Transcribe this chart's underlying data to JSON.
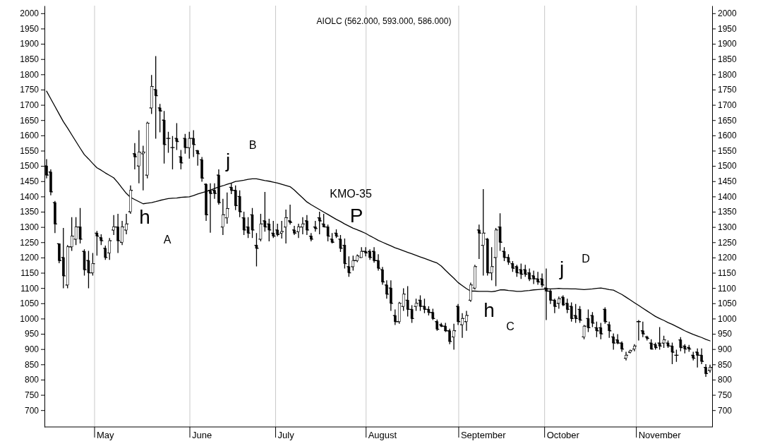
{
  "chart_data": {
    "type": "candlestick",
    "title": "AIOLC (562.000, 593.000, 586.000)",
    "color": "#000000",
    "categories": [
      null,
      null,
      null,
      null,
      null,
      null,
      null,
      null,
      null,
      null,
      null,
      null,
      null,
      null,
      "May",
      null,
      null,
      null,
      null,
      null,
      null,
      null,
      null,
      null,
      null,
      null,
      null,
      null,
      null,
      null,
      null,
      null,
      null,
      null,
      null,
      null,
      null,
      "June",
      null,
      null,
      null,
      null,
      null,
      null,
      null,
      null,
      null,
      null,
      null,
      null,
      null,
      null,
      null,
      null,
      null,
      null,
      null,
      "July",
      null,
      null,
      null,
      null,
      null,
      null,
      null,
      null,
      null,
      null,
      null,
      null,
      null,
      null,
      null,
      null,
      null,
      null,
      null,
      null,
      null,
      null,
      "August",
      null,
      null,
      null,
      null,
      null,
      null,
      null,
      null,
      null,
      null,
      null,
      null,
      null,
      null,
      null,
      null,
      null,
      null,
      null,
      null,
      null,
      null,
      null,
      "September",
      null,
      null,
      null,
      null,
      null,
      null,
      null,
      null,
      null,
      null,
      null,
      null,
      null,
      null,
      null,
      null,
      null,
      null,
      "October",
      null,
      null,
      null,
      null,
      null,
      null,
      null,
      null,
      null,
      null,
      null,
      null,
      null,
      null,
      null,
      null,
      null,
      null,
      null,
      null,
      null,
      null,
      "November",
      null,
      null,
      null,
      null,
      null,
      null,
      null,
      null,
      null,
      null,
      null,
      null
    ],
    "ohlc": [
      [
        1500,
        1522,
        1459,
        1470
      ],
      [
        1480,
        1489,
        1404,
        1415
      ],
      [
        1380,
        1385,
        1280,
        1310
      ],
      [
        1245,
        1246,
        1181,
        1190
      ],
      [
        1200,
        1297,
        1099,
        1140
      ],
      [
        1110,
        1241,
        1099,
        1235
      ],
      [
        1235,
        1332,
        1222,
        1270
      ],
      [
        1260,
        1332,
        1241,
        1300
      ],
      [
        1300,
        1362,
        1246,
        1260
      ],
      [
        1220,
        1227,
        1141,
        1160
      ],
      [
        1190,
        1222,
        1099,
        1150
      ],
      [
        1150,
        1215,
        1141,
        1180
      ],
      [
        1280,
        1287,
        1206,
        1270
      ],
      [
        1265,
        1276,
        1241,
        1255
      ],
      [
        1230,
        1239,
        1192,
        1200
      ],
      [
        1215,
        1264,
        1192,
        1255
      ],
      [
        1290,
        1339,
        1274,
        1300
      ],
      [
        1300,
        1343,
        1215,
        1255
      ],
      [
        1250,
        1320,
        1241,
        1300
      ],
      [
        1290,
        1343,
        1276,
        1310
      ],
      [
        1350,
        1436,
        1343,
        1420
      ],
      [
        1540,
        1575,
        1489,
        1530
      ],
      [
        1500,
        1617,
        1443,
        1545
      ],
      [
        1540,
        1566,
        1420,
        1545
      ],
      [
        1470,
        1645,
        1459,
        1640
      ],
      [
        1690,
        1798,
        1670,
        1760
      ],
      [
        1750,
        1860,
        1589,
        1730
      ],
      [
        1690,
        1703,
        1610,
        1680
      ],
      [
        1650,
        1680,
        1508,
        1570
      ],
      [
        1590,
        1612,
        1543,
        1590
      ],
      [
        1560,
        1598,
        1489,
        1560
      ],
      [
        1590,
        1640,
        1552,
        1580
      ],
      [
        1530,
        1552,
        1489,
        1510
      ],
      [
        1590,
        1605,
        1540,
        1560
      ],
      [
        1560,
        1612,
        1524,
        1590
      ],
      [
        1590,
        1617,
        1529,
        1570
      ],
      [
        1550,
        1552,
        1501,
        1540
      ],
      [
        1520,
        1529,
        1448,
        1460
      ],
      [
        1440,
        1443,
        1320,
        1340
      ],
      [
        1420,
        1443,
        1281,
        1410
      ],
      [
        1420,
        1443,
        1392,
        1410
      ],
      [
        1470,
        1489,
        1373,
        1380
      ],
      [
        1300,
        1392,
        1274,
        1340
      ],
      [
        1330,
        1413,
        1311,
        1360
      ],
      [
        1430,
        1443,
        1408,
        1420
      ],
      [
        1420,
        1436,
        1355,
        1370
      ],
      [
        1400,
        1420,
        1332,
        1350
      ],
      [
        1330,
        1350,
        1274,
        1290
      ],
      [
        1300,
        1332,
        1264,
        1280
      ],
      [
        1340,
        1362,
        1264,
        1290
      ],
      [
        1240,
        1280,
        1171,
        1230
      ],
      [
        1260,
        1343,
        1253,
        1310
      ],
      [
        1320,
        1415,
        1285,
        1300
      ],
      [
        1310,
        1327,
        1253,
        1290
      ],
      [
        1280,
        1320,
        1264,
        1270
      ],
      [
        1290,
        1311,
        1269,
        1275
      ],
      [
        1280,
        1320,
        1262,
        1285
      ],
      [
        1300,
        1357,
        1246,
        1330
      ],
      [
        1320,
        1373,
        1308,
        1315
      ],
      [
        1290,
        1304,
        1274,
        1280
      ],
      [
        1285,
        1311,
        1264,
        1300
      ],
      [
        1300,
        1332,
        1276,
        1310
      ],
      [
        1320,
        1339,
        1274,
        1290
      ],
      [
        1270,
        1280,
        1253,
        1260
      ],
      [
        1300,
        1320,
        1285,
        1295
      ],
      [
        1330,
        1350,
        1276,
        1320
      ],
      [
        1310,
        1343,
        1299,
        1300
      ],
      [
        1300,
        1308,
        1253,
        1270
      ],
      [
        1260,
        1280,
        1246,
        1250
      ],
      [
        1280,
        1292,
        1264,
        1270
      ],
      [
        1260,
        1274,
        1218,
        1230
      ],
      [
        1240,
        1262,
        1164,
        1180
      ],
      [
        1170,
        1204,
        1137,
        1150
      ],
      [
        1170,
        1206,
        1157,
        1190
      ],
      [
        1190,
        1210,
        1185,
        1205
      ],
      [
        1200,
        1234,
        1199,
        1220
      ],
      [
        1220,
        1234,
        1204,
        1215
      ],
      [
        1220,
        1227,
        1192,
        1200
      ],
      [
        1220,
        1234,
        1183,
        1190
      ],
      [
        1190,
        1211,
        1157,
        1165
      ],
      [
        1160,
        1169,
        1111,
        1120
      ],
      [
        1110,
        1125,
        1065,
        1080
      ],
      [
        1100,
        1125,
        1025,
        1050
      ],
      [
        1010,
        1030,
        979,
        990
      ],
      [
        990,
        1055,
        983,
        1050
      ],
      [
        1040,
        1099,
        1025,
        1080
      ],
      [
        1060,
        1106,
        1007,
        1030
      ],
      [
        1030,
        1044,
        986,
        1000
      ],
      [
        1040,
        1065,
        1025,
        1050
      ],
      [
        1060,
        1076,
        1025,
        1040
      ],
      [
        1040,
        1065,
        1018,
        1030
      ],
      [
        1030,
        1040,
        1010,
        1020
      ],
      [
        1020,
        1032,
        995,
        1000
      ],
      [
        990,
        997,
        960,
        965
      ],
      [
        980,
        986,
        972,
        975
      ],
      [
        975,
        986,
        956,
        960
      ],
      [
        960,
        967,
        916,
        925
      ],
      [
        940,
        983,
        898,
        960
      ],
      [
        1040,
        1048,
        979,
        990
      ],
      [
        980,
        1018,
        937,
        1000
      ],
      [
        990,
        1025,
        960,
        1010
      ],
      [
        1060,
        1118,
        1055,
        1110
      ],
      [
        1100,
        1176,
        1095,
        1170
      ],
      [
        1290,
        1308,
        1195,
        1280
      ],
      [
        1240,
        1424,
        1141,
        1280
      ],
      [
        1260,
        1264,
        1141,
        1150
      ],
      [
        1150,
        1234,
        1125,
        1170
      ],
      [
        1200,
        1297,
        1106,
        1290
      ],
      [
        1300,
        1345,
        1222,
        1250
      ],
      [
        1220,
        1234,
        1188,
        1200
      ],
      [
        1200,
        1211,
        1176,
        1185
      ],
      [
        1180,
        1188,
        1153,
        1165
      ],
      [
        1170,
        1176,
        1137,
        1150
      ],
      [
        1160,
        1180,
        1130,
        1145
      ],
      [
        1160,
        1176,
        1137,
        1145
      ],
      [
        1150,
        1164,
        1123,
        1130
      ],
      [
        1140,
        1157,
        1113,
        1130
      ],
      [
        1130,
        1153,
        1111,
        1120
      ],
      [
        1130,
        1148,
        1102,
        1110
      ],
      [
        1100,
        1164,
        995,
        1090
      ],
      [
        1090,
        1095,
        1048,
        1060
      ],
      [
        1060,
        1065,
        1018,
        1040
      ],
      [
        1050,
        1072,
        1032,
        1065
      ],
      [
        1070,
        1076,
        1041,
        1045
      ],
      [
        1050,
        1065,
        1018,
        1030
      ],
      [
        1040,
        1053,
        990,
        1000
      ],
      [
        1010,
        1048,
        986,
        1000
      ],
      [
        1030,
        1041,
        986,
        995
      ],
      [
        940,
        979,
        932,
        975
      ],
      [
        1000,
        1030,
        956,
        970
      ],
      [
        1010,
        1021,
        972,
        985
      ],
      [
        970,
        990,
        939,
        960
      ],
      [
        970,
        986,
        932,
        950
      ],
      [
        1030,
        1037,
        983,
        990
      ],
      [
        980,
        990,
        937,
        960
      ],
      [
        940,
        951,
        898,
        920
      ],
      [
        930,
        949,
        916,
        920
      ],
      [
        920,
        925,
        891,
        900
      ],
      [
        870,
        891,
        863,
        880
      ],
      [
        890,
        898,
        886,
        895
      ],
      [
        900,
        916,
        893,
        910
      ],
      [
        990,
        995,
        928,
        990
      ],
      [
        960,
        990,
        939,
        950
      ],
      [
        940,
        944,
        928,
        935
      ],
      [
        920,
        932,
        898,
        900
      ],
      [
        915,
        921,
        898,
        905
      ],
      [
        920,
        972,
        898,
        910
      ],
      [
        920,
        944,
        904,
        930
      ],
      [
        920,
        928,
        904,
        910
      ],
      [
        910,
        921,
        851,
        890
      ],
      [
        880,
        898,
        858,
        880
      ],
      [
        930,
        939,
        893,
        905
      ],
      [
        910,
        916,
        886,
        900
      ],
      [
        905,
        914,
        891,
        900
      ],
      [
        880,
        891,
        863,
        870
      ],
      [
        890,
        902,
        840,
        880
      ],
      [
        880,
        902,
        851,
        860
      ],
      [
        840,
        851,
        809,
        820
      ],
      [
        830,
        849,
        823,
        840
      ]
    ],
    "series": [
      {
        "type": "line",
        "color": "#000000",
        "values": [
          1745,
          1720,
          1695,
          1670,
          1645,
          1624,
          1602,
          1580,
          1558,
          1537,
          1523,
          1508,
          1494,
          1486,
          1477,
          1469,
          1461,
          1445,
          1427,
          1410,
          1397,
          1390,
          1383,
          1376,
          1378,
          1380,
          1383,
          1387,
          1390,
          1393,
          1394,
          1395,
          1397,
          1398,
          1399,
          1403,
          1408,
          1412,
          1416,
          1421,
          1426,
          1431,
          1435,
          1440,
          1444,
          1449,
          1451,
          1453,
          1456,
          1458,
          1458,
          1455,
          1452,
          1450,
          1447,
          1444,
          1440,
          1436,
          1432,
          1421,
          1408,
          1395,
          1382,
          1373,
          1365,
          1357,
          1349,
          1341,
          1333,
          1325,
          1318,
          1310,
          1303,
          1296,
          1291,
          1285,
          1279,
          1271,
          1264,
          1256,
          1250,
          1244,
          1238,
          1232,
          1227,
          1222,
          1217,
          1212,
          1207,
          1202,
          1197,
          1192,
          1187,
          1182,
          1172,
          1158,
          1145,
          1132,
          1118,
          1108,
          1098,
          1090,
          1090,
          1089,
          1089,
          1089,
          1088,
          1090,
          1094,
          1094,
          1092,
          1091,
          1089,
          1089,
          1091,
          1092,
          1094,
          1095,
          1096,
          1097,
          1097,
          1098,
          1099,
          1098,
          1098,
          1097,
          1097,
          1096,
          1095,
          1096,
          1097,
          1099,
          1100,
          1098,
          1095,
          1093,
          1086,
          1079,
          1070,
          1061,
          1052,
          1043,
          1034,
          1025,
          1016,
          1007,
          1000,
          994,
          987,
          981,
          974,
          967,
          960,
          954,
          948,
          943,
          938,
          932,
          927
        ]
      }
    ],
    "ylim": [
      645,
      2025
    ],
    "yticks": [
      700,
      750,
      800,
      850,
      900,
      950,
      1000,
      1050,
      1100,
      1150,
      1200,
      1250,
      1300,
      1350,
      1400,
      1450,
      1500,
      1550,
      1600,
      1650,
      1700,
      1750,
      1800,
      1850,
      1900,
      1950,
      2000
    ],
    "y2lim": [
      645,
      2025
    ],
    "y2ticks": [
      700,
      750,
      800,
      850,
      900,
      950,
      1000,
      1050,
      1100,
      1150,
      1200,
      1250,
      1300,
      1350,
      1400,
      1450,
      1500,
      1550,
      1600,
      1650,
      1700,
      1750,
      1800,
      1850,
      1900,
      1950,
      2000
    ],
    "grid": "x",
    "annotations": [
      "h",
      "A",
      "j",
      "B",
      "KMO-35",
      "P",
      "h",
      "C",
      "j",
      "D"
    ]
  }
}
